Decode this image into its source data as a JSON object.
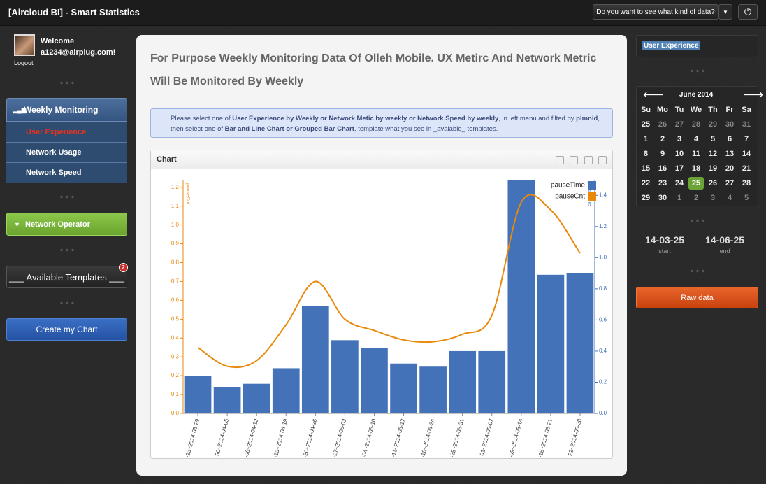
{
  "header": {
    "title": "[Aircloud BI] - Smart Statistics",
    "dropdown": "Do you want to see what kind of data?"
  },
  "user": {
    "greeting": "Welcome",
    "email": "a1234@airplug.com!",
    "logout": "Logout"
  },
  "menu": {
    "title": "Weekly Monitoring",
    "items": [
      "User Experience",
      "Network Usage",
      "Network Speed"
    ],
    "active": 0
  },
  "operator": "Network Operator",
  "templates": {
    "label": "___ Available Templates ___",
    "badge": "2"
  },
  "create": "Create my Chart",
  "heading": "For Purpose Weekly Monitoring Data Of Olleh Mobile. UX Metirc And Network Metric Will Be Monitored By Weekly",
  "info": [
    {
      "text": "Please select one of ",
      "bold": false
    },
    {
      "text": "User Experience by Weekly or Network Metic by weekly or Network Speed by weekly",
      "bold": true
    },
    {
      "text": ", in left menu and filted by ",
      "bold": false
    },
    {
      "text": "plmnid",
      "bold": true
    },
    {
      "text": ", then select one of ",
      "bold": false
    },
    {
      "text": "Bar and Line Chart or Grouped Bar Chart",
      "bold": true
    },
    {
      "text": ", template what you see in _avaiable_ templates.",
      "bold": false
    }
  ],
  "panel_title": "Chart",
  "chart_data": {
    "type": "combo",
    "ylabel": "pauseCnt",
    "y2label": "pauseTime",
    "categories": [
      "-23~2014-03-29",
      "-30~2014-04-05",
      "-06~2014-04-12",
      "-13~2014-04-19",
      "-20~2014-04-26",
      "-27~2014-05-03",
      "-04~2014-05-10",
      "-11~2014-05-17",
      "-18~2014-05-24",
      "-25~2014-05-31",
      "-01~2014-06-07",
      "-09~2014-06-14",
      "-15~2014-06-21",
      "-22~2014-06-28"
    ],
    "series": [
      {
        "name": "pauseTime",
        "type": "bar",
        "axis": "y2",
        "color": "#4472b8",
        "values": [
          0.24,
          0.17,
          0.19,
          0.29,
          0.69,
          0.47,
          0.42,
          0.32,
          0.3,
          0.4,
          0.4,
          1.5,
          0.89,
          0.9
        ]
      },
      {
        "name": "pauseCnt",
        "type": "line",
        "color": "#e8890c",
        "values": [
          0.35,
          0.25,
          0.28,
          0.47,
          0.7,
          0.5,
          0.44,
          0.39,
          0.38,
          0.42,
          0.52,
          1.12,
          1.08,
          0.85
        ]
      }
    ],
    "ylim": [
      0,
      1.24
    ],
    "yticks": [
      {
        "value": 0,
        "label": "0.0"
      },
      0.1,
      0.2,
      0.3,
      0.4,
      0.5,
      0.6,
      0.7,
      0.8,
      0.9,
      {
        "value": 1,
        "label": "1.0"
      },
      1.1,
      1.2
    ],
    "y2lim": [
      0,
      1.5
    ],
    "y2ticks": [
      {
        "value": 0,
        "label": "0.0"
      },
      0.2,
      0.4,
      0.6,
      0.8,
      {
        "value": 1,
        "label": "1.0"
      },
      1.2,
      1.4
    ],
    "legend": "top-right",
    "grid": false
  },
  "side_tag": "User Experience",
  "calendar": {
    "title": "June 2014",
    "weekdays": [
      "Su",
      "Mo",
      "Tu",
      "We",
      "Th",
      "Fr",
      "Sa"
    ],
    "weeks": [
      [
        25,
        26,
        27,
        28,
        29,
        30,
        31
      ],
      [
        1,
        2,
        3,
        4,
        5,
        6,
        7
      ],
      [
        8,
        9,
        10,
        11,
        12,
        13,
        14
      ],
      [
        15,
        16,
        17,
        18,
        19,
        20,
        21
      ],
      [
        22,
        23,
        24,
        25,
        26,
        27,
        28
      ],
      [
        29,
        30,
        1,
        2,
        3,
        4,
        5
      ]
    ],
    "selected": {
      "week": 4,
      "day": 3
    }
  },
  "range": {
    "start": "14-03-25",
    "start_label": "start",
    "end": "14-06-25",
    "end_label": "end"
  },
  "raw": "Raw data"
}
